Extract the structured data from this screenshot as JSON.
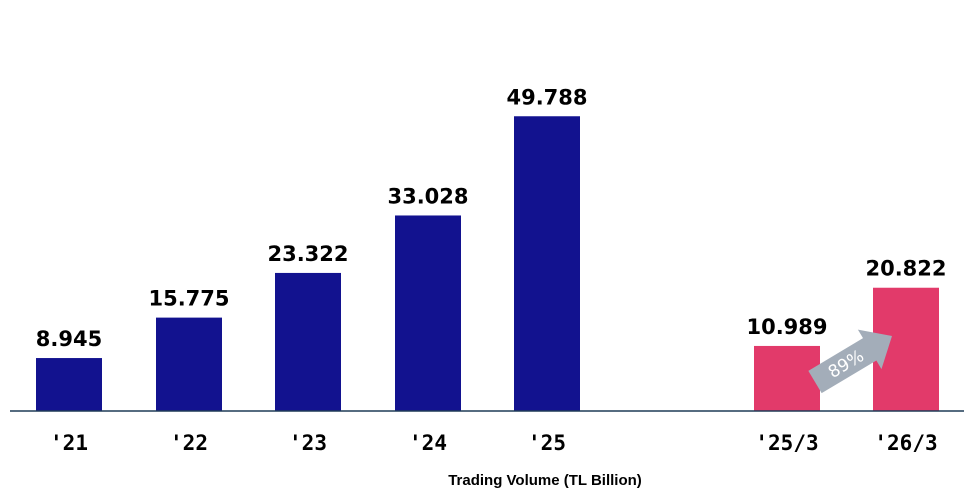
{
  "chart_data": {
    "type": "bar",
    "categories": [
      "'21",
      "'22",
      "'23",
      "'24",
      "'25",
      "'25/3",
      "'26/3"
    ],
    "values": [
      8.945,
      15.775,
      23.322,
      33.028,
      49.788,
      10.989,
      20.822
    ],
    "value_labels": [
      "8.945",
      "15.775",
      "23.322",
      "33.028",
      "49.788",
      "10.989",
      "20.822"
    ],
    "groups": [
      {
        "categories": [
          "'21",
          "'22",
          "'23",
          "'24",
          "'25"
        ],
        "color": "#12128f"
      },
      {
        "categories": [
          "'25/3",
          "'26/3"
        ],
        "color": "#e23a6a"
      }
    ],
    "title": "",
    "xlabel": "Trading Volume (TL Billion)",
    "ylabel": "",
    "ylim": [
      0,
      60
    ],
    "grid": false,
    "legend": "none",
    "annotations": [
      {
        "text": "89%",
        "from": "'25/3",
        "to": "'26/3",
        "shape": "arrow",
        "color": "#a3adb9"
      }
    ]
  },
  "colors": {
    "annual": "#12128f",
    "quarterly": "#e23a6a",
    "axis": "#1f3b57",
    "arrow": "#a3adb9"
  }
}
